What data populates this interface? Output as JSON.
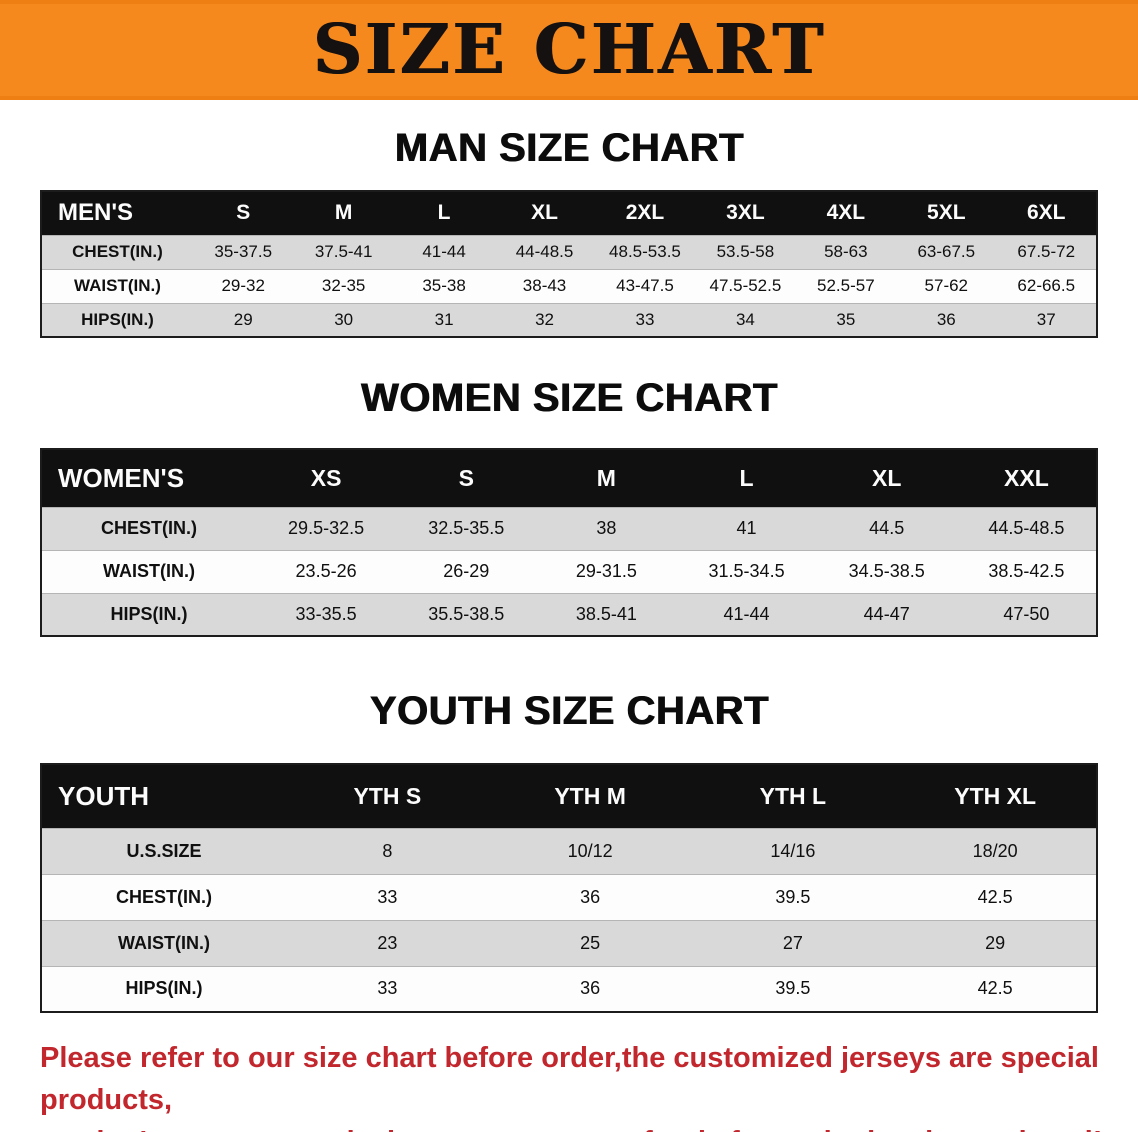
{
  "banner": {
    "title": "SIZE CHART"
  },
  "sections": [
    {
      "heading": "MAN SIZE CHART",
      "table": {
        "header": [
          "MEN'S",
          "S",
          "M",
          "L",
          "XL",
          "2XL",
          "3XL",
          "4XL",
          "5XL",
          "6XL"
        ],
        "rows": [
          [
            "CHEST(IN.)",
            "35-37.5",
            "37.5-41",
            "41-44",
            "44-48.5",
            "48.5-53.5",
            "53.5-58",
            "58-63",
            "63-67.5",
            "67.5-72"
          ],
          [
            "WAIST(IN.)",
            "29-32",
            "32-35",
            "35-38",
            "38-43",
            "43-47.5",
            "47.5-52.5",
            "52.5-57",
            "57-62",
            "62-66.5"
          ],
          [
            "HIPS(IN.)",
            "29",
            "30",
            "31",
            "32",
            "33",
            "34",
            "35",
            "36",
            "37"
          ]
        ]
      }
    },
    {
      "heading": "WOMEN SIZE CHART",
      "table": {
        "header": [
          "WOMEN'S",
          "XS",
          "S",
          "M",
          "L",
          "XL",
          "XXL"
        ],
        "rows": [
          [
            "CHEST(IN.)",
            "29.5-32.5",
            "32.5-35.5",
            "38",
            "41",
            "44.5",
            "44.5-48.5"
          ],
          [
            "WAIST(IN.)",
            "23.5-26",
            "26-29",
            "29-31.5",
            "31.5-34.5",
            "34.5-38.5",
            "38.5-42.5"
          ],
          [
            "HIPS(IN.)",
            "33-35.5",
            "35.5-38.5",
            "38.5-41",
            "41-44",
            "44-47",
            "47-50"
          ]
        ]
      }
    },
    {
      "heading": "YOUTH SIZE CHART",
      "table": {
        "header": [
          "YOUTH",
          "YTH S",
          "YTH M",
          "YTH L",
          "YTH XL"
        ],
        "rows": [
          [
            "U.S.SIZE",
            "8",
            "10/12",
            "14/16",
            "18/20"
          ],
          [
            "CHEST(IN.)",
            "33",
            "36",
            "39.5",
            "42.5"
          ],
          [
            "WAIST(IN.)",
            "23",
            "25",
            "27",
            "29"
          ],
          [
            "HIPS(IN.)",
            "33",
            "36",
            "39.5",
            "42.5"
          ]
        ]
      }
    }
  ],
  "footer": {
    "line1": "Please refer to our size chart before order,the customized jerseys are special products,",
    "line2": "we don't accept cancel, change, teturn or refund after order has been placed!"
  },
  "colors": {
    "banner_bg": "#f6891e",
    "table_header_bg": "#101010",
    "row_stripe": "#d9d9d9",
    "footer_text": "#c1272d"
  }
}
